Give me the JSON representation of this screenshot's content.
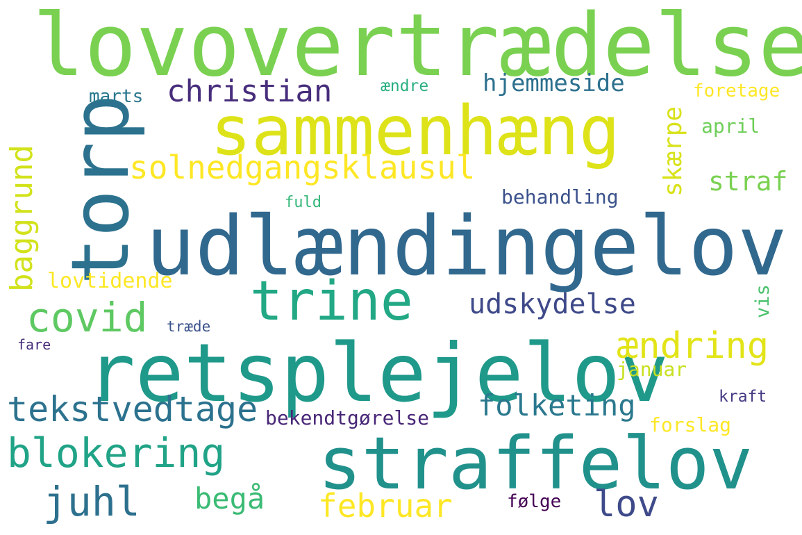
{
  "cloud": {
    "words": {
      "lovovertraedelse": {
        "text": "lovovertrædelse",
        "color": "#7ad151"
      },
      "sammenhaeng": {
        "text": "sammenhæng",
        "color": "#dde318"
      },
      "torp": {
        "text": "torp",
        "color": "#2c728e"
      },
      "udlaendingelov": {
        "text": "udlændingelov",
        "color": "#31688e"
      },
      "retsplejelov": {
        "text": "retsplejelov",
        "color": "#1f998a"
      },
      "straffelov": {
        "text": "straffelov",
        "color": "#21918c"
      },
      "trine": {
        "text": "trine",
        "color": "#22a884"
      },
      "christian": {
        "text": "christian",
        "color": "#472d7b"
      },
      "solnedgangsklausul": {
        "text": "solnedgangsklausul",
        "color": "#fde725"
      },
      "hjemmeside": {
        "text": "hjemmeside",
        "color": "#2d708e"
      },
      "skaerpe": {
        "text": "skærpe",
        "color": "#d8e219"
      },
      "baggrund": {
        "text": "baggrund",
        "color": "#d2e21b"
      },
      "covid": {
        "text": "covid",
        "color": "#5ec962"
      },
      "udskydelse": {
        "text": "udskydelse",
        "color": "#3e4989"
      },
      "aendring": {
        "text": "ændring",
        "color": "#e2e418"
      },
      "tekstvedtage": {
        "text": "tekstvedtage",
        "color": "#2c728e"
      },
      "folketing": {
        "text": "folketing",
        "color": "#2a788e"
      },
      "bekendtgoerelse": {
        "text": "bekendtgørelse",
        "color": "#482677"
      },
      "blokering": {
        "text": "blokering",
        "color": "#20a386"
      },
      "juhl": {
        "text": "juhl",
        "color": "#2d708e"
      },
      "begaa": {
        "text": "begå",
        "color": "#3bbb75"
      },
      "februar": {
        "text": "februar",
        "color": "#fde725"
      },
      "lov": {
        "text": "lov",
        "color": "#3e4a89"
      },
      "foelge": {
        "text": "følge",
        "color": "#440154"
      },
      "forslag": {
        "text": "forslag",
        "color": "#fde725"
      },
      "kraft": {
        "text": "kraft",
        "color": "#443983"
      },
      "januar": {
        "text": "januar",
        "color": "#c8e020"
      },
      "vis": {
        "text": "vis",
        "color": "#4ac16d"
      },
      "straf": {
        "text": "straf",
        "color": "#7ad151"
      },
      "april": {
        "text": "april",
        "color": "#6ece58"
      },
      "foretage": {
        "text": "foretage",
        "color": "#fde725"
      },
      "aendre": {
        "text": "ændre",
        "color": "#29af7f"
      },
      "marts": {
        "text": "marts",
        "color": "#2a788e"
      },
      "behandling": {
        "text": "behandling",
        "color": "#3b528b"
      },
      "fuld": {
        "text": "fuld",
        "color": "#35b779"
      },
      "lovtidende": {
        "text": "lovtidende",
        "color": "#fde725"
      },
      "traede": {
        "text": "træde",
        "color": "#3b528b"
      },
      "fare": {
        "text": "fare",
        "color": "#472d7b"
      }
    }
  }
}
